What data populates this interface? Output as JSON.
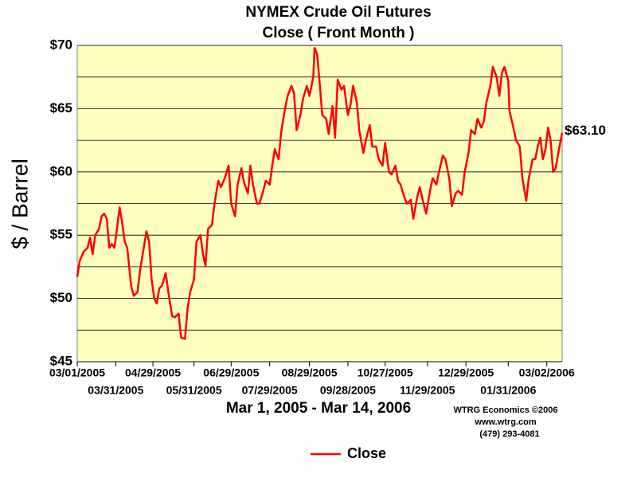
{
  "chart_data": {
    "type": "line",
    "title": "NYMEX Crude Oil Futures",
    "subtitle": "Close ( Front Month )",
    "y_label": "$ / Barrel",
    "x_label": "Mar 1, 2005 - Mar 14, 2006",
    "credits": [
      "WTRG Economics  ©2006",
      "www.wtrg.com",
      "(479) 293-4081"
    ],
    "last_value_label": "$63.10",
    "x": [
      "03/01/2005",
      "03/03/2005",
      "03/06/2005",
      "03/09/2005",
      "03/11/2005",
      "03/13/2005",
      "03/15/2005",
      "03/18/2005",
      "03/20/2005",
      "03/22/2005",
      "03/24/2005",
      "03/26/2005",
      "03/28/2005",
      "03/30/2005",
      "04/01/2005",
      "04/03/2005",
      "04/05/2005",
      "04/07/2005",
      "04/09/2005",
      "04/12/2005",
      "04/14/2005",
      "04/17/2005",
      "04/19/2005",
      "04/21/2005",
      "04/24/2005",
      "04/26/2005",
      "04/28/2005",
      "04/30/2005",
      "05/02/2005",
      "05/04/2005",
      "05/06/2005",
      "05/09/2005",
      "05/11/2005",
      "05/14/2005",
      "05/16/2005",
      "05/19/2005",
      "05/21/2005",
      "05/24/2005",
      "05/26/2005",
      "05/28/2005",
      "05/31/2005",
      "06/02/2005",
      "06/05/2005",
      "06/07/2005",
      "06/09/2005",
      "06/11/2005",
      "06/14/2005",
      "06/16/2005",
      "06/19/2005",
      "06/21/2005",
      "06/24/2005",
      "06/27/2005",
      "06/29/2005",
      "07/02/2005",
      "07/04/2005",
      "07/07/2005",
      "07/09/2005",
      "07/12/2005",
      "07/14/2005",
      "07/16/2005",
      "07/19/2005",
      "07/21/2005",
      "07/24/2005",
      "07/26/2005",
      "07/29/2005",
      "07/31/2005",
      "08/02/2005",
      "08/05/2005",
      "08/07/2005",
      "08/10/2005",
      "08/12/2005",
      "08/15/2005",
      "08/17/2005",
      "08/19/2005",
      "08/22/2005",
      "08/24/2005",
      "08/27/2005",
      "08/29/2005",
      "09/01/2005",
      "09/02/2005",
      "09/04/2005",
      "09/06/2005",
      "09/08/2005",
      "09/11/2005",
      "09/13/2005",
      "09/16/2005",
      "09/18/2005",
      "09/20/2005",
      "09/23/2005",
      "09/25/2005",
      "09/28/2005",
      "09/30/2005",
      "10/02/2005",
      "10/05/2005",
      "10/07/2005",
      "10/10/2005",
      "10/12/2005",
      "10/15/2005",
      "10/17/2005",
      "10/20/2005",
      "10/22/2005",
      "10/25/2005",
      "10/27/2005",
      "10/30/2005",
      "11/01/2005",
      "11/04/2005",
      "11/06/2005",
      "11/08/2005",
      "11/11/2005",
      "11/13/2005",
      "11/16/2005",
      "11/18/2005",
      "11/21/2005",
      "11/23/2005",
      "11/26/2005",
      "11/28/2005",
      "12/01/2005",
      "12/03/2005",
      "12/06/2005",
      "12/08/2005",
      "12/11/2005",
      "12/13/2005",
      "12/16/2005",
      "12/18/2005",
      "12/21/2005",
      "12/23/2005",
      "12/26/2005",
      "12/28/2005",
      "12/31/2005",
      "01/02/2006",
      "01/05/2006",
      "01/07/2006",
      "01/10/2006",
      "01/12/2006",
      "01/14/2006",
      "01/17/2006",
      "01/19/2006",
      "01/22/2006",
      "01/24/2006",
      "01/26/2006",
      "01/28/2006",
      "01/31/2006",
      "02/01/2006",
      "02/04/2006",
      "02/06/2006",
      "02/09/2006",
      "02/11/2006",
      "02/14/2006",
      "02/16/2006",
      "02/19/2006",
      "02/21/2006",
      "02/23/2006",
      "02/25/2006",
      "02/27/2006",
      "03/01/2006",
      "03/03/2006",
      "03/05/2006",
      "03/07/2006",
      "03/09/2006",
      "03/11/2006",
      "03/14/2006"
    ],
    "series": [
      {
        "name": "Close",
        "color": "#ff0000",
        "values": [
          51.7,
          53.0,
          53.7,
          54.0,
          54.8,
          53.5,
          55.0,
          55.5,
          56.5,
          56.7,
          56.3,
          54.0,
          54.3,
          54.0,
          55.5,
          57.2,
          56.0,
          54.5,
          54.0,
          51.0,
          50.2,
          50.5,
          52.2,
          53.5,
          55.3,
          54.5,
          51.5,
          50.0,
          49.6,
          50.8,
          51.0,
          52.0,
          50.5,
          48.6,
          48.5,
          48.8,
          46.9,
          46.8,
          49.2,
          50.5,
          51.5,
          54.5,
          55.0,
          53.5,
          52.6,
          55.5,
          55.8,
          57.5,
          59.3,
          58.8,
          59.5,
          60.5,
          57.5,
          56.5,
          59.0,
          60.3,
          59.2,
          58.3,
          60.5,
          59.0,
          57.5,
          57.5,
          58.5,
          59.3,
          59.0,
          60.5,
          61.8,
          61.0,
          63.2,
          65.0,
          66.0,
          66.8,
          66.2,
          63.3,
          64.5,
          65.8,
          66.8,
          66.0,
          67.5,
          69.8,
          69.3,
          67.0,
          64.5,
          64.2,
          63.0,
          65.2,
          62.7,
          67.3,
          66.5,
          66.8,
          64.5,
          65.3,
          66.8,
          65.5,
          63.2,
          61.5,
          62.5,
          63.7,
          62.0,
          62.0,
          61.0,
          60.5,
          62.3,
          60.0,
          59.8,
          60.5,
          59.3,
          59.0,
          58.0,
          57.5,
          57.8,
          56.3,
          58.0,
          58.8,
          57.5,
          56.7,
          58.5,
          59.5,
          59.0,
          60.0,
          61.3,
          61.0,
          59.5,
          57.3,
          58.3,
          58.5,
          58.2,
          60.0,
          61.5,
          63.3,
          63.0,
          64.2,
          63.5,
          64.0,
          65.5,
          66.8,
          68.3,
          67.5,
          66.0,
          67.8,
          68.3,
          67.2,
          64.8,
          63.5,
          62.5,
          62.0,
          59.5,
          57.7,
          59.5,
          61.0,
          61.0,
          62.0,
          62.7,
          61.0,
          61.8,
          63.5,
          62.5,
          60.0,
          60.3,
          61.5,
          63.1
        ]
      }
    ],
    "xlim": [
      "03/01/2005",
      "03/14/2006"
    ],
    "xticks": [
      "03/01/2005",
      "03/31/2005",
      "04/29/2005",
      "05/31/2005",
      "06/29/2005",
      "07/29/2005",
      "08/29/2005",
      "09/28/2005",
      "10/27/2005",
      "11/29/2005",
      "12/29/2005",
      "01/31/2006",
      "03/02/2006"
    ],
    "ylim": [
      45,
      70
    ],
    "yticks": [
      {
        "value": 45,
        "label": "$45"
      },
      {
        "value": 50,
        "label": "$50"
      },
      {
        "value": 55,
        "label": "$55"
      },
      {
        "value": 60,
        "label": "$60"
      },
      {
        "value": 65,
        "label": "$65"
      },
      {
        "value": 70,
        "label": "$70"
      }
    ],
    "y_minor_ticks": [
      47.5,
      52.5,
      57.5,
      62.5,
      67.5
    ],
    "grid": true,
    "plot_background": "#ffffc0",
    "legend": "bottom"
  }
}
